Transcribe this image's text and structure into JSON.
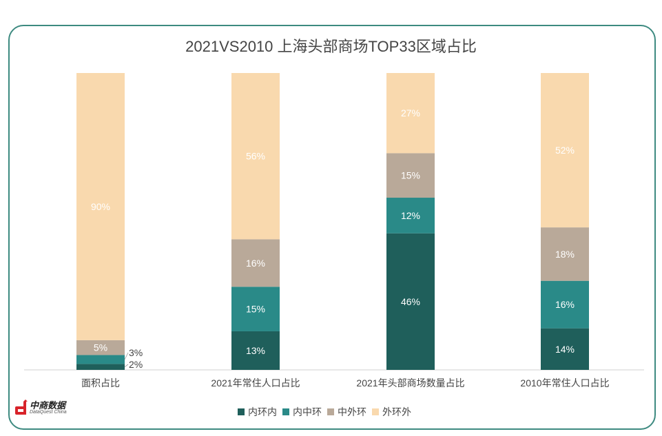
{
  "chart_data": {
    "type": "bar",
    "stacked": true,
    "title": "2021VS2010 上海头部商场TOP33区域占比",
    "categories": [
      "面积占比",
      "2021年常住人口占比",
      "2021年头部商场数量占比",
      "2010年常住人口占比"
    ],
    "series": [
      {
        "name": "内环内",
        "color": "#1f5f5b",
        "values": [
          2,
          13,
          46,
          14
        ]
      },
      {
        "name": "内中环",
        "color": "#2a8a88",
        "values": [
          3,
          15,
          12,
          16
        ]
      },
      {
        "name": "中外环",
        "color": "#b9a999",
        "values": [
          5,
          16,
          15,
          18
        ]
      },
      {
        "name": "外环外",
        "color": "#f9d9ae",
        "values": [
          90,
          56,
          27,
          52
        ]
      }
    ],
    "ylim": [
      0,
      100
    ],
    "value_suffix": "%",
    "legend": "bottom",
    "grid": false
  },
  "logo": {
    "name": "中商数据",
    "sub": "DataQuest China"
  }
}
